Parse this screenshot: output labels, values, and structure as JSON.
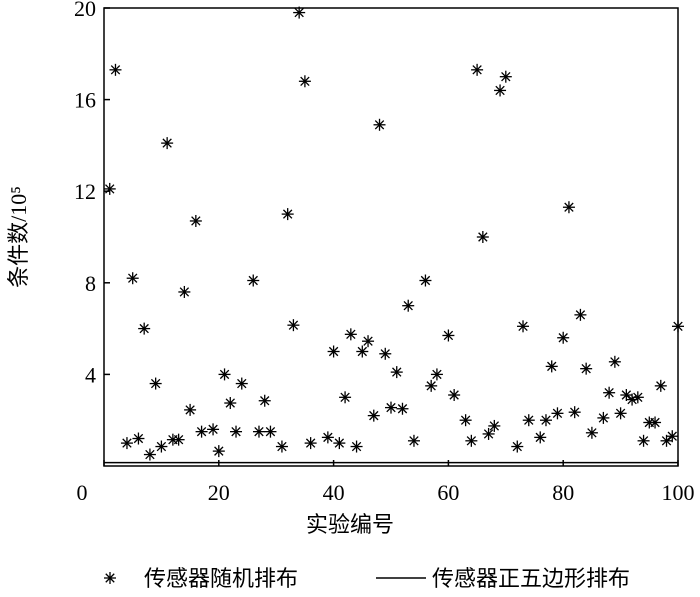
{
  "chart_data": {
    "type": "scatter",
    "xlabel": "实验编号",
    "ylabel": "条件数/10⁵",
    "xlim": [
      0,
      100
    ],
    "ylim": [
      0,
      20
    ],
    "xticks": [
      0,
      20,
      40,
      60,
      80,
      100
    ],
    "yticks": [
      4,
      8,
      12,
      16,
      20
    ],
    "series": [
      {
        "name": "传感器随机排布",
        "color": "#000000",
        "marker": "asterisk",
        "x": [
          1,
          2,
          4,
          5,
          6,
          7,
          8,
          9,
          10,
          11,
          12,
          13,
          14,
          15,
          16,
          17,
          19,
          20,
          21,
          22,
          23,
          24,
          26,
          27,
          28,
          29,
          31,
          32,
          33,
          34,
          35,
          36,
          39,
          40,
          41,
          42,
          43,
          44,
          45,
          46,
          47,
          48,
          49,
          50,
          51,
          52,
          53,
          54,
          56,
          57,
          58,
          60,
          61,
          63,
          64,
          65,
          66,
          67,
          68,
          69,
          70,
          72,
          73,
          74,
          76,
          77,
          78,
          79,
          80,
          81,
          82,
          83,
          84,
          85,
          87,
          88,
          89,
          90,
          91,
          92,
          93,
          94,
          95,
          96,
          97,
          98,
          99,
          100
        ],
        "values": [
          12.1,
          17.3,
          1.0,
          8.2,
          1.2,
          6.0,
          0.5,
          3.6,
          0.85,
          14.1,
          1.15,
          1.15,
          7.6,
          2.45,
          10.7,
          1.5,
          1.6,
          0.65,
          4.0,
          2.75,
          1.5,
          3.6,
          8.1,
          1.5,
          2.85,
          1.5,
          0.85,
          11.0,
          6.15,
          19.8,
          16.8,
          1.0,
          1.25,
          5.0,
          1.0,
          3.0,
          5.75,
          0.85,
          5.0,
          5.45,
          2.2,
          14.9,
          4.9,
          2.55,
          4.1,
          2.5,
          7.0,
          1.1,
          8.1,
          3.5,
          4.0,
          5.7,
          3.1,
          2.0,
          1.1,
          17.3,
          10.0,
          1.4,
          1.75,
          16.4,
          17.0,
          0.85,
          6.1,
          2.0,
          1.25,
          2.0,
          4.35,
          2.3,
          5.6,
          11.3,
          2.35,
          6.6,
          4.25,
          1.45,
          2.1,
          3.2,
          4.55,
          2.3,
          3.1,
          2.9,
          3.0,
          1.1,
          1.9,
          1.9,
          3.5,
          1.1,
          1.3,
          6.1
        ]
      },
      {
        "name": "传感器正五边形排布",
        "color": "#000000",
        "marker": "line",
        "x": [
          0,
          100
        ],
        "values": [
          0.15,
          0.15
        ]
      }
    ]
  }
}
